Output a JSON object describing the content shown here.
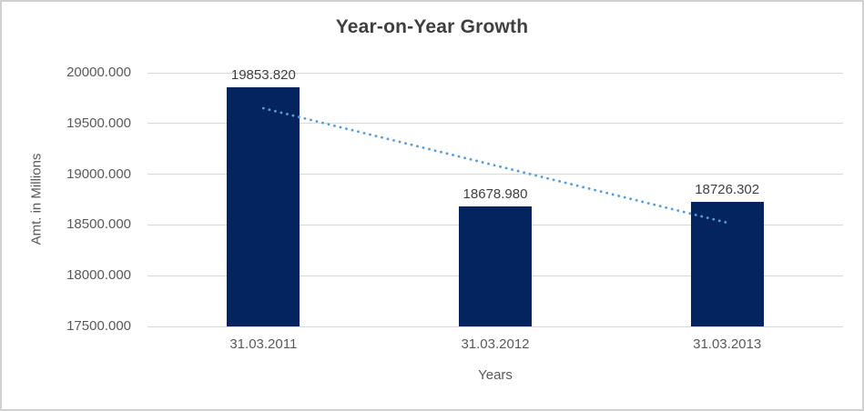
{
  "chart_data": {
    "type": "bar",
    "title": "Year-on-Year Growth",
    "xlabel": "Years",
    "ylabel": "Amt. in Millions",
    "categories": [
      "31.03.2011",
      "31.03.2012",
      "31.03.2013"
    ],
    "values": [
      19853.82,
      18678.98,
      18726.302
    ],
    "value_labels": [
      "19853.820",
      "18678.980",
      "18726.302"
    ],
    "ylim": [
      17500,
      20000
    ],
    "ytick_step": 500,
    "ytick_labels": [
      "20000.000",
      "19500.000",
      "19000.000",
      "18500.000",
      "18000.000",
      "17500.000"
    ],
    "grid": true,
    "legend": "none",
    "colors": {
      "bar": "#03245e",
      "gridline": "#d9d9d9",
      "trendline": "#5b9bd5",
      "title_text": "#3f3f3f",
      "axis_text": "#595959",
      "frame_border": "#d0d0d0"
    },
    "trendline": {
      "type": "linear",
      "style": "dotted",
      "color": "#5b9bd5",
      "start_value": 19650.1,
      "end_value": 18522.6
    }
  }
}
